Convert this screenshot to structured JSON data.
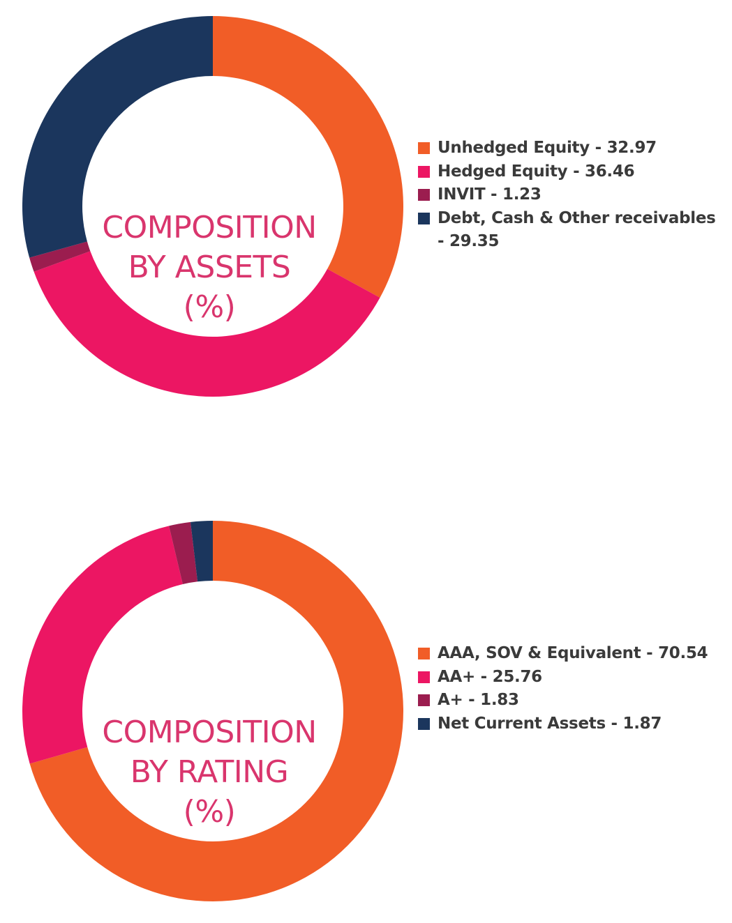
{
  "chart_data": [
    {
      "type": "pie",
      "title_lines": [
        "COMPOSITION",
        "BY ASSETS",
        "(%)"
      ],
      "slices": [
        {
          "label": "Unhedged Equity - 32.97",
          "value": 32.97,
          "color": "#f15d27"
        },
        {
          "label": "Hedged Equity - 36.46",
          "value": 36.46,
          "color": "#ec1663"
        },
        {
          "label": "INVIT - 1.23",
          "value": 1.23,
          "color": "#9b1d4f"
        },
        {
          "label": "Debt, Cash & Other receivables - 29.35",
          "value": 29.35,
          "color": "#1b365d"
        }
      ]
    },
    {
      "type": "pie",
      "title_lines": [
        "COMPOSITION",
        "BY RATING",
        "(%)"
      ],
      "slices": [
        {
          "label": "AAA, SOV & Equivalent - 70.54",
          "value": 70.54,
          "color": "#f15d27"
        },
        {
          "label": "AA+ - 25.76",
          "value": 25.76,
          "color": "#ec1663"
        },
        {
          "label": "A+ - 1.83",
          "value": 1.83,
          "color": "#9b1d4f"
        },
        {
          "label": "Net Current Assets - 1.87",
          "value": 1.87,
          "color": "#1b365d"
        }
      ]
    }
  ]
}
